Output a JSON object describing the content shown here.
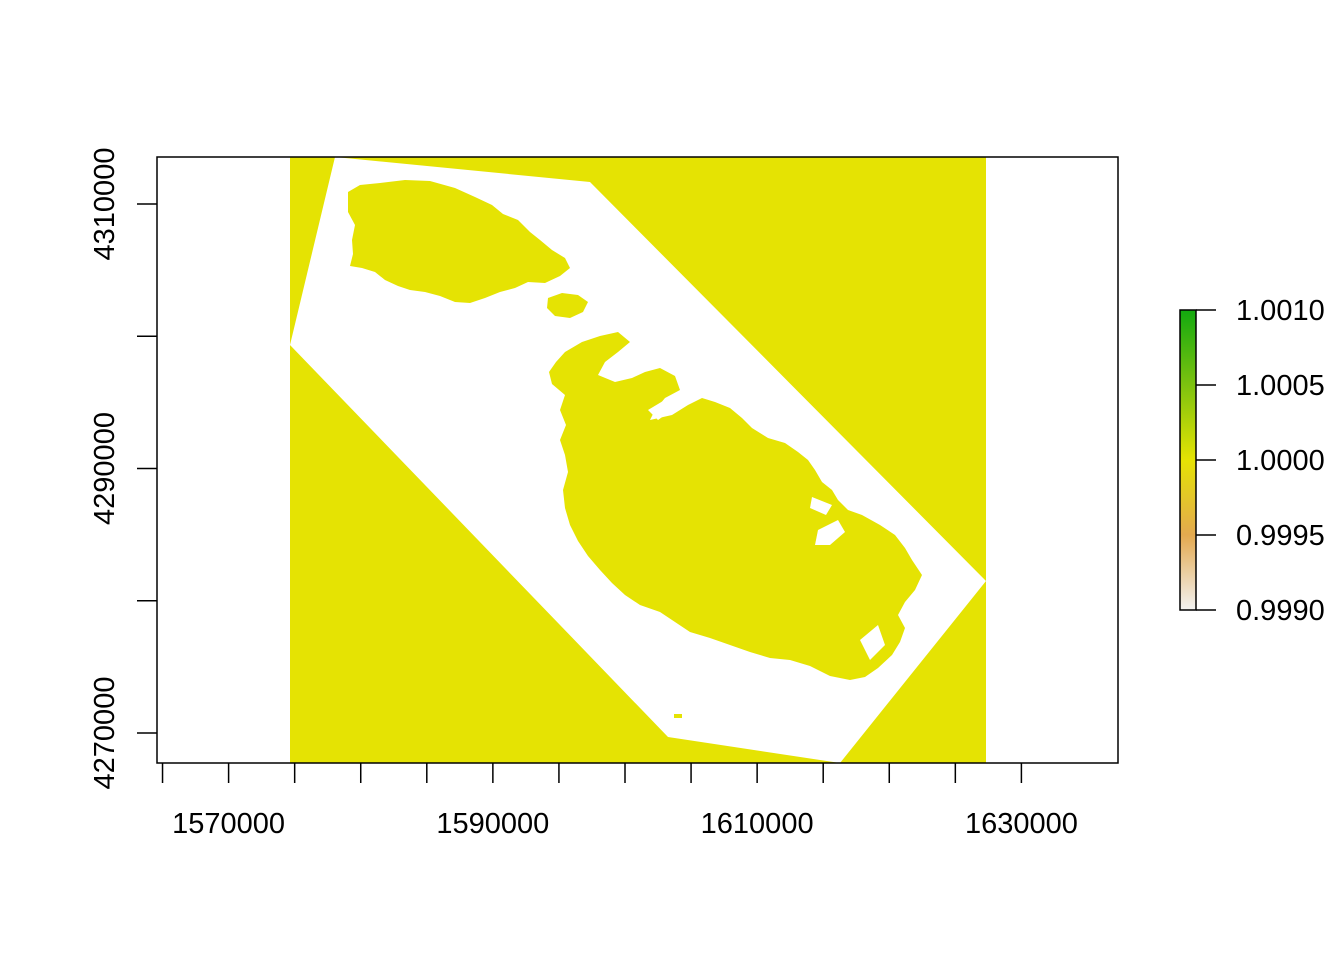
{
  "plot": {
    "type": "raster-map",
    "x_axis": {
      "ticks": [
        1565000,
        1570000,
        1575000,
        1580000,
        1585000,
        1590000,
        1595000,
        1600000,
        1605000,
        1610000,
        1615000,
        1620000,
        1625000,
        1630000
      ],
      "tick_labels": [
        "1570000",
        "1590000",
        "1610000",
        "1630000"
      ],
      "tick_label_values": [
        1570000,
        1590000,
        1610000,
        1630000
      ]
    },
    "y_axis": {
      "ticks": [
        4270000,
        4280000,
        4290000,
        4300000,
        4310000
      ],
      "tick_labels": [
        "4270000",
        "4290000",
        "4310000"
      ],
      "tick_label_values": [
        4270000,
        4290000,
        4310000
      ]
    },
    "colors": {
      "raster_fill": "#E5E303",
      "background": "#FFFFFF",
      "frame": "#000000"
    }
  },
  "legend": {
    "tick_labels": [
      "1.0010",
      "1.0005",
      "1.0000",
      "0.9995",
      "0.9990"
    ],
    "range": [
      0.999,
      1.001
    ],
    "gradient_colors": [
      "#12A90F",
      "#7DC20F",
      "#E5E303",
      "#E3A94F",
      "#F2F2F2"
    ]
  }
}
